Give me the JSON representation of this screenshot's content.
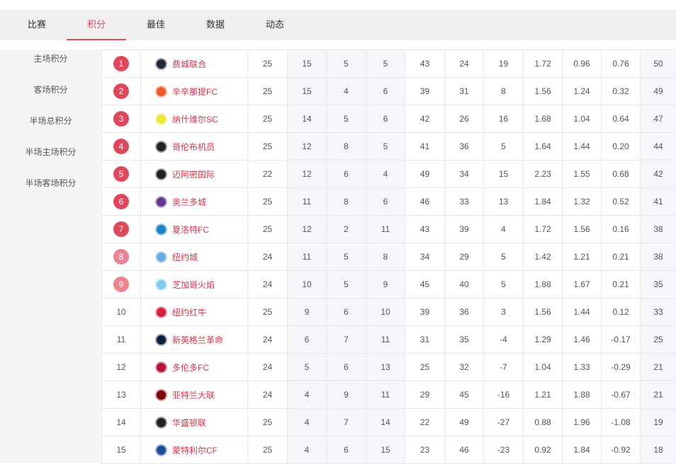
{
  "tabs": [
    {
      "label": "比赛"
    },
    {
      "label": "积分",
      "active": true
    },
    {
      "label": "最佳"
    },
    {
      "label": "数据"
    },
    {
      "label": "动态"
    }
  ],
  "sidebar": {
    "items": [
      {
        "label": "主场积分"
      },
      {
        "label": "客场积分"
      },
      {
        "label": "半场总积分"
      },
      {
        "label": "半场主场积分"
      },
      {
        "label": "半场客场积分"
      }
    ]
  },
  "colors": {
    "accent": "#e0475a",
    "rank_light": "#ec8390",
    "team_text": "#d8344b"
  },
  "rows": [
    {
      "rank": "1",
      "team": "费城联合",
      "logo": "#1d2a3a",
      "p": "25",
      "w": "15",
      "d": "5",
      "l": "5",
      "gf": "43",
      "ga": "24",
      "gd": "19",
      "a1": "1.72",
      "a2": "0.96",
      "a3": "0.76",
      "pts": "50"
    },
    {
      "rank": "2",
      "team": "辛辛那提FC",
      "logo": "#f05a28",
      "p": "25",
      "w": "15",
      "d": "4",
      "l": "6",
      "gf": "39",
      "ga": "31",
      "gd": "8",
      "a1": "1.56",
      "a2": "1.24",
      "a3": "0.32",
      "pts": "49"
    },
    {
      "rank": "3",
      "team": "纳什维尔SC",
      "logo": "#ece83a",
      "p": "25",
      "w": "14",
      "d": "5",
      "l": "6",
      "gf": "42",
      "ga": "26",
      "gd": "16",
      "a1": "1.68",
      "a2": "1.04",
      "a3": "0.64",
      "pts": "47"
    },
    {
      "rank": "4",
      "team": "哥伦布机员",
      "logo": "#222",
      "p": "25",
      "w": "12",
      "d": "8",
      "l": "5",
      "gf": "41",
      "ga": "36",
      "gd": "5",
      "a1": "1.64",
      "a2": "1.44",
      "a3": "0.20",
      "pts": "44"
    },
    {
      "rank": "5",
      "team": "迈阿密国际",
      "logo": "#231f20",
      "p": "22",
      "w": "12",
      "d": "6",
      "l": "4",
      "gf": "49",
      "ga": "34",
      "gd": "15",
      "a1": "2.23",
      "a2": "1.55",
      "a3": "0.68",
      "pts": "42"
    },
    {
      "rank": "6",
      "team": "奥兰多城",
      "logo": "#633492",
      "p": "25",
      "w": "11",
      "d": "8",
      "l": "6",
      "gf": "46",
      "ga": "33",
      "gd": "13",
      "a1": "1.84",
      "a2": "1.32",
      "a3": "0.52",
      "pts": "41"
    },
    {
      "rank": "7",
      "team": "夏洛特FC",
      "logo": "#1a85c8",
      "p": "25",
      "w": "12",
      "d": "2",
      "l": "11",
      "gf": "43",
      "ga": "39",
      "gd": "4",
      "a1": "1.72",
      "a2": "1.56",
      "a3": "0.16",
      "pts": "38"
    },
    {
      "rank": "8",
      "team": "纽约城",
      "logo": "#6cace4",
      "p": "24",
      "w": "11",
      "d": "5",
      "l": "8",
      "gf": "34",
      "ga": "29",
      "gd": "5",
      "a1": "1.42",
      "a2": "1.21",
      "a3": "0.21",
      "pts": "38"
    },
    {
      "rank": "9",
      "team": "芝加哥火焰",
      "logo": "#7ccdef",
      "p": "24",
      "w": "10",
      "d": "5",
      "l": "9",
      "gf": "45",
      "ga": "40",
      "gd": "5",
      "a1": "1.88",
      "a2": "1.67",
      "a3": "0.21",
      "pts": "35"
    },
    {
      "rank": "10",
      "team": "纽约红牛",
      "logo": "#d6213a",
      "p": "25",
      "w": "9",
      "d": "6",
      "l": "10",
      "gf": "39",
      "ga": "36",
      "gd": "3",
      "a1": "1.56",
      "a2": "1.44",
      "a3": "0.12",
      "pts": "33"
    },
    {
      "rank": "11",
      "team": "新英格兰革命",
      "logo": "#0a2240",
      "p": "24",
      "w": "6",
      "d": "7",
      "l": "11",
      "gf": "31",
      "ga": "35",
      "gd": "-4",
      "a1": "1.29",
      "a2": "1.46",
      "a3": "-0.17",
      "pts": "25"
    },
    {
      "rank": "12",
      "team": "多伦多FC",
      "logo": "#b81137",
      "p": "24",
      "w": "5",
      "d": "6",
      "l": "13",
      "gf": "25",
      "ga": "32",
      "gd": "-7",
      "a1": "1.04",
      "a2": "1.33",
      "a3": "-0.29",
      "pts": "21"
    },
    {
      "rank": "13",
      "team": "亚特兰大联",
      "logo": "#80000a",
      "p": "24",
      "w": "4",
      "d": "9",
      "l": "11",
      "gf": "29",
      "ga": "45",
      "gd": "-16",
      "a1": "1.21",
      "a2": "1.88",
      "a3": "-0.67",
      "pts": "21"
    },
    {
      "rank": "14",
      "team": "华盛顿联",
      "logo": "#222",
      "p": "25",
      "w": "4",
      "d": "7",
      "l": "14",
      "gf": "22",
      "ga": "49",
      "gd": "-27",
      "a1": "0.88",
      "a2": "1.96",
      "a3": "-1.08",
      "pts": "19"
    },
    {
      "rank": "15",
      "team": "蒙特利尔CF",
      "logo": "#1b4f9c",
      "p": "25",
      "w": "4",
      "d": "6",
      "l": "15",
      "gf": "23",
      "ga": "46",
      "gd": "-23",
      "a1": "0.92",
      "a2": "1.84",
      "a3": "-0.92",
      "pts": "18"
    }
  ]
}
